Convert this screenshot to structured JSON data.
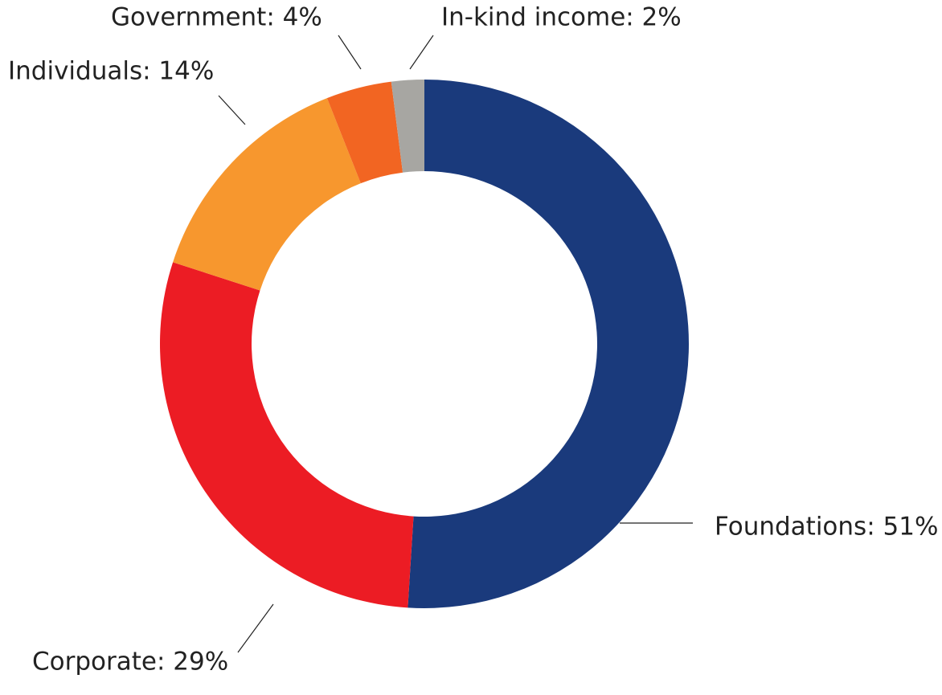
{
  "chart_data": {
    "type": "pie",
    "variant": "donut",
    "title": "",
    "legend": "none",
    "slices": [
      {
        "name": "Foundations",
        "value": 51,
        "label": "Foundations: 51%",
        "color": "#1a3a7c"
      },
      {
        "name": "Corporate",
        "value": 29,
        "label": "Corporate: 29%",
        "color": "#ec1c24"
      },
      {
        "name": "Individuals",
        "value": 14,
        "label": "Individuals: 14%",
        "color": "#f7972e"
      },
      {
        "name": "Government",
        "value": 4,
        "label": "Government: 4%",
        "color": "#f26522"
      },
      {
        "name": "In-kind income",
        "value": 2,
        "label": "In-kind income: 2%",
        "color": "#a7a6a2"
      }
    ]
  }
}
